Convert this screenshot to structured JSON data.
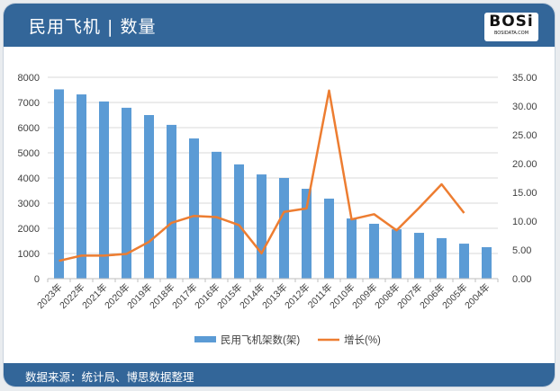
{
  "header": {
    "title": "民用飞机 | 数量"
  },
  "logo": {
    "text": "BOSi",
    "subtext": "BOSIDATA.COM"
  },
  "footer": {
    "source": "数据来源：统计局、博思数据整理"
  },
  "legend": {
    "bar_label": "民用飞机架数(架)",
    "line_label": "增长(%)"
  },
  "colors": {
    "bar": "#5b9bd5",
    "line": "#ed7d31",
    "header": "#336699",
    "grid": "#d9d9d9"
  },
  "chart_data": {
    "type": "bar+line",
    "title": "民用飞机 | 数量",
    "categories": [
      "2023年",
      "2022年",
      "2021年",
      "2020年",
      "2019年",
      "2018年",
      "2017年",
      "2016年",
      "2015年",
      "2014年",
      "2013年",
      "2012年",
      "2011年",
      "2010年",
      "2009年",
      "2008年",
      "2007年",
      "2006年",
      "2005年",
      "2004年"
    ],
    "series": [
      {
        "name": "民用飞机架数(架)",
        "type": "bar",
        "axis": "left",
        "values": [
          7520,
          7320,
          7040,
          6790,
          6500,
          6110,
          5570,
          5040,
          4540,
          4140,
          4000,
          3570,
          3180,
          2390,
          2180,
          1960,
          1820,
          1610,
          1390,
          1250
        ]
      },
      {
        "name": "增长(%)",
        "type": "line",
        "axis": "right",
        "values": [
          3.1,
          4.0,
          4.0,
          4.3,
          6.4,
          9.7,
          10.9,
          10.7,
          9.3,
          4.4,
          11.6,
          12.2,
          32.7,
          10.3,
          11.2,
          8.4,
          12.3,
          16.4,
          11.4,
          null
        ]
      }
    ],
    "y_left": {
      "min": 0,
      "max": 8000,
      "ticks": [
        "0",
        "1000",
        "2000",
        "3000",
        "4000",
        "5000",
        "6000",
        "7000",
        "8000"
      ]
    },
    "y_right": {
      "min": 0,
      "max": 35,
      "ticks": [
        "0.00",
        "5.00",
        "10.00",
        "15.00",
        "20.00",
        "25.00",
        "30.00",
        "35.00"
      ]
    },
    "grid": true,
    "legend_position": "bottom"
  }
}
